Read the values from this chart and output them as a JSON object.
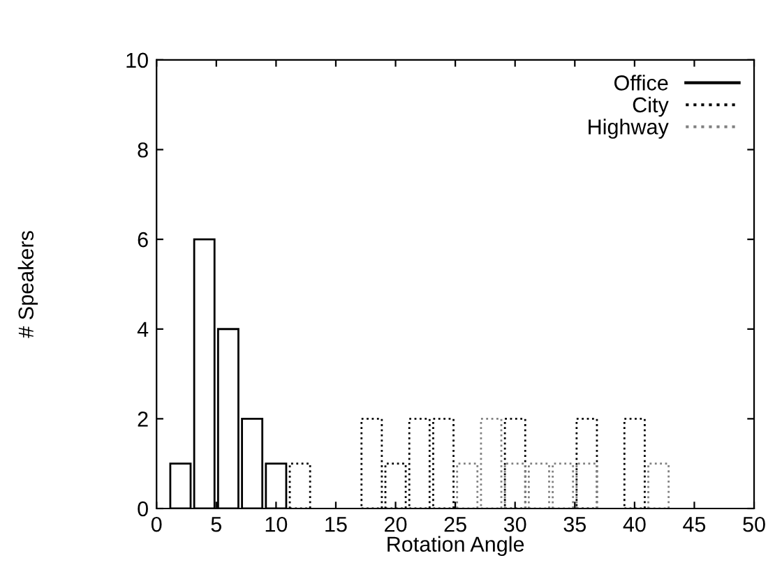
{
  "chart_data": {
    "type": "bar",
    "xlabel": "Rotation Angle",
    "ylabel": "# Speakers",
    "series": [
      {
        "name": "Office",
        "color": "#000000",
        "line_style": "solid",
        "x": [
          2,
          4,
          6,
          8,
          10
        ],
        "values": [
          1,
          6,
          4,
          2,
          1
        ]
      },
      {
        "name": "City",
        "color": "#000000",
        "line_style": "dotted",
        "x": [
          12,
          18,
          20,
          22,
          24,
          30,
          36,
          40
        ],
        "values": [
          1,
          2,
          1,
          2,
          2,
          2,
          2,
          2
        ]
      },
      {
        "name": "Highway",
        "color": "#808080",
        "line_style": "dotted",
        "x": [
          26,
          28,
          30,
          32,
          34,
          36,
          42
        ],
        "values": [
          1,
          2,
          1,
          1,
          1,
          1,
          1
        ]
      }
    ],
    "xlim": [
      0,
      50
    ],
    "xticks": [
      0,
      5,
      10,
      15,
      20,
      25,
      30,
      35,
      40,
      45,
      50
    ],
    "ylim": [
      0,
      10
    ],
    "yticks": [
      0,
      2,
      4,
      6,
      8,
      10
    ],
    "grid": false,
    "legend": "top right"
  }
}
